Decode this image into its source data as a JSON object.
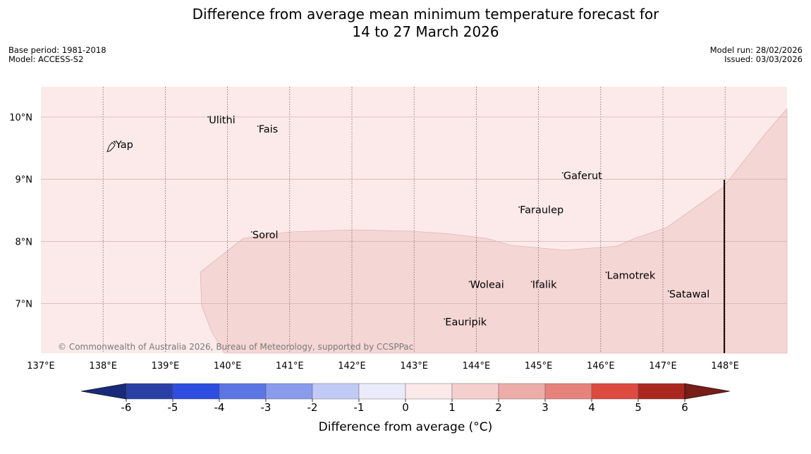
{
  "header": {
    "title_line1": "Difference from average mean minimum temperature forecast for",
    "title_line2": "14 to 27 March 2026",
    "base_period": "Base period: 1981-2018",
    "model": "Model: ACCESS-S2",
    "model_run": "Model run: 28/02/2026",
    "issued": "Issued: 03/03/2026"
  },
  "map": {
    "lon_range": [
      137,
      149
    ],
    "lat_range": [
      6.2,
      10.5
    ],
    "lon_ticks": [
      "137°E",
      "138°E",
      "139°E",
      "140°E",
      "141°E",
      "142°E",
      "143°E",
      "144°E",
      "145°E",
      "146°E",
      "147°E",
      "148°E"
    ],
    "lat_ticks": [
      "10°N",
      "9°N",
      "8°N",
      "7°N"
    ],
    "background_category": "0 to 1",
    "region_category": "1 to 2",
    "places": [
      {
        "name": "Yap",
        "lon": 138.2,
        "lat": 9.5
      },
      {
        "name": "Ulithi",
        "lon": 139.7,
        "lat": 9.9
      },
      {
        "name": "Fais",
        "lon": 140.5,
        "lat": 9.75
      },
      {
        "name": "Gaferut",
        "lon": 145.4,
        "lat": 9.0
      },
      {
        "name": "Faraulep",
        "lon": 144.7,
        "lat": 8.45
      },
      {
        "name": "Sorol",
        "lon": 140.4,
        "lat": 8.05
      },
      {
        "name": "Woleai",
        "lon": 143.9,
        "lat": 7.25
      },
      {
        "name": "Ifalik",
        "lon": 144.9,
        "lat": 7.25
      },
      {
        "name": "Lamotrek",
        "lon": 146.1,
        "lat": 7.4
      },
      {
        "name": "Satawal",
        "lon": 147.1,
        "lat": 7.1
      },
      {
        "name": "Eauripik",
        "lon": 143.5,
        "lat": 6.65
      }
    ],
    "credit": "© Commonwealth of Australia 2026, Bureau of Meteorology, supported by CCSPPac"
  },
  "colorbar": {
    "title": "Difference from average (°C)",
    "labels": [
      "-6",
      "-5",
      "-4",
      "-3",
      "-2",
      "-1",
      "0",
      "1",
      "2",
      "3",
      "4",
      "5",
      "6"
    ],
    "colors": [
      "#2a3fa6",
      "#2d4ee0",
      "#5b75e5",
      "#8a9bec",
      "#c1c9f5",
      "#e9ebfb",
      "#fbe9e9",
      "#f4cfcd",
      "#ecaca8",
      "#e6827c",
      "#dc4a40",
      "#a9271f"
    ],
    "low_extend_color": "#1a2a7a",
    "high_extend_color": "#781d18",
    "background_color": "#fbeae9",
    "region_color": "#f4d6d4"
  }
}
